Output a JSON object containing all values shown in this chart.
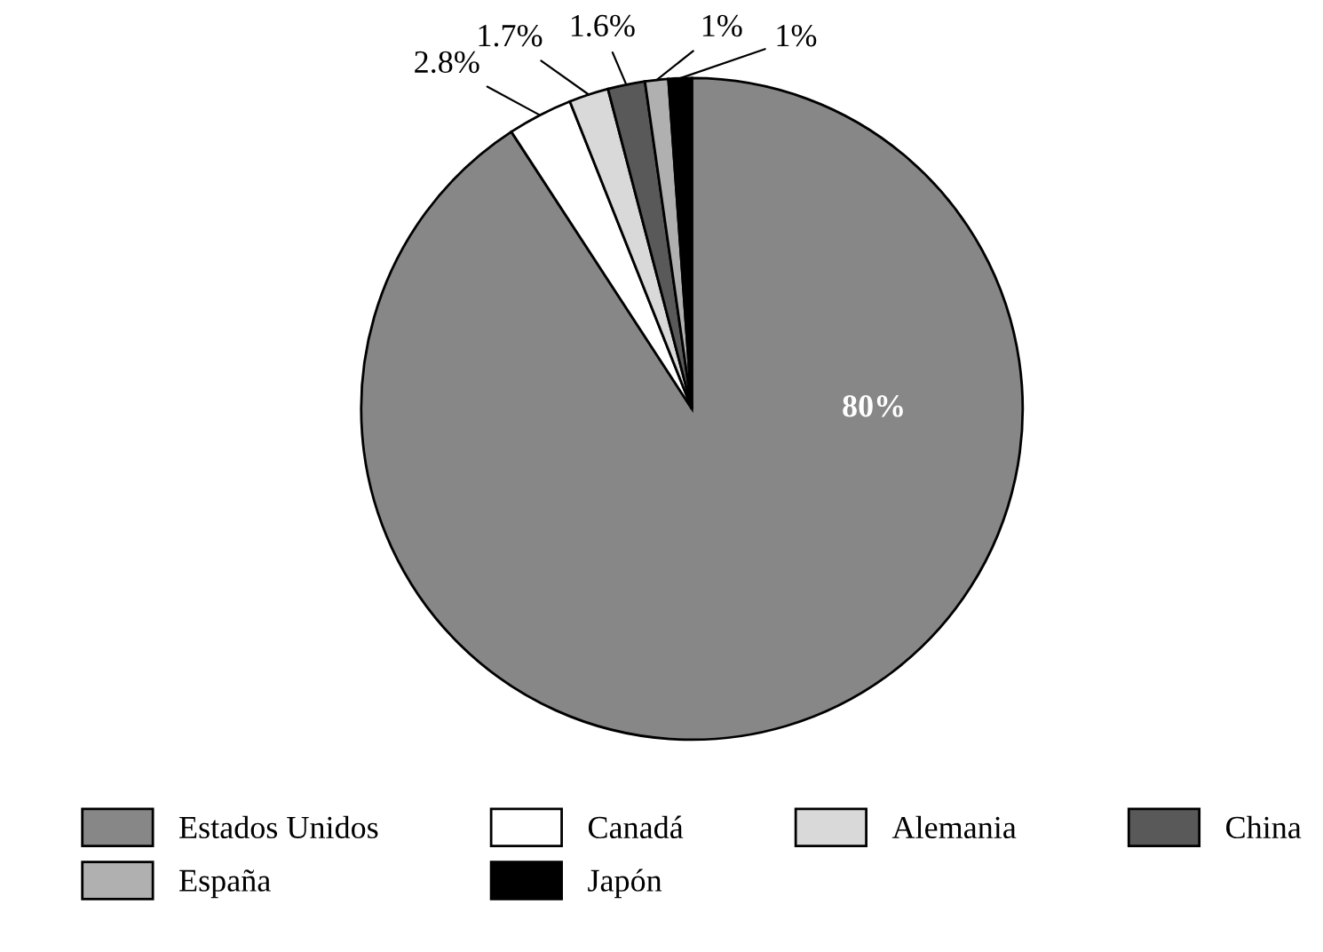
{
  "chart_data": {
    "type": "pie",
    "categories": [
      "Estados Unidos",
      "Canadá",
      "Alemania",
      "China",
      "España",
      "Japón"
    ],
    "values": [
      80,
      2.8,
      1.7,
      1.6,
      1,
      1
    ],
    "colors": [
      "#878787",
      "#ffffff",
      "#d9d9d9",
      "#595959",
      "#b0b0b0",
      "#000000"
    ],
    "value_labels": [
      "80%",
      "2.8%",
      "1.7%",
      "1.6%",
      "1%",
      "1%"
    ],
    "legend": "bottom"
  }
}
